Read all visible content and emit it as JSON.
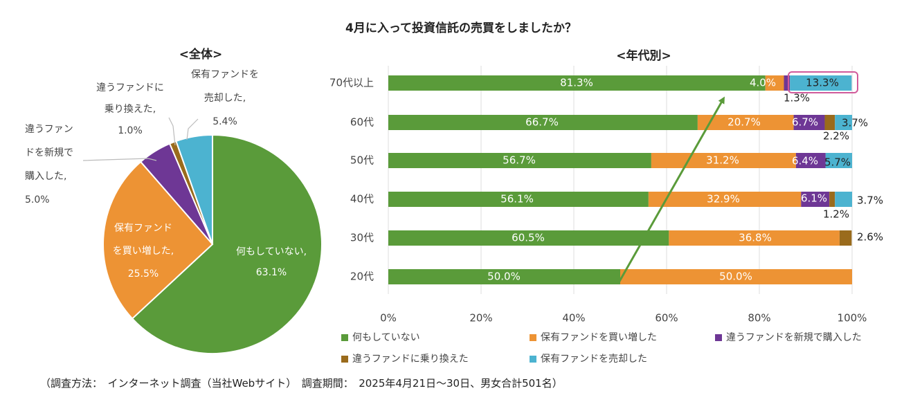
{
  "title": "4月に入って投資信託の売買をしましたか？",
  "footer": "（調査方法：　インターネット調査（当社Webサイト）　調査期間：　2025年4月21日～30日、男女合計501名）",
  "chart_data": [
    {
      "type": "pie",
      "title": "<全体>",
      "slices": [
        {
          "label": [
            "何もしていない,",
            "63.1%"
          ],
          "value": 63.1,
          "color": "#5a9b3a"
        },
        {
          "label": [
            "保有ファンド",
            "を買い増した,",
            "25.5%"
          ],
          "value": 25.5,
          "color": "#ed9334"
        },
        {
          "label": [
            "違うファン",
            "ドを新規で",
            "購入した,",
            "5.0%"
          ],
          "value": 5.0,
          "color": "#6e3795"
        },
        {
          "label": [
            "違うファンドに",
            "乗り換えた,",
            "1.0%"
          ],
          "value": 1.0,
          "color": "#9a6b1c"
        },
        {
          "label": [
            "保有ファンドを",
            "売却した,",
            "5.4%"
          ],
          "value": 5.4,
          "color": "#4cb3d0"
        }
      ]
    },
    {
      "type": "bar",
      "orientation": "horizontal",
      "stacked": "percent",
      "title": "<年代別>",
      "categories": [
        "70代以上",
        "60代",
        "50代",
        "40代",
        "30代",
        "20代"
      ],
      "xlim": [
        0,
        100
      ],
      "xticks": [
        "0%",
        "20%",
        "40%",
        "60%",
        "80%",
        "100%"
      ],
      "series": [
        {
          "name": "何もしていない",
          "color": "#5a9b3a",
          "values": [
            81.3,
            66.7,
            56.7,
            56.1,
            60.5,
            50.0
          ]
        },
        {
          "name": "保有ファンドを買い増した",
          "color": "#ed9334",
          "values": [
            4.0,
            20.7,
            31.2,
            32.9,
            36.8,
            50.0
          ]
        },
        {
          "name": "違うファンドを新規で購入した",
          "color": "#6e3795",
          "values": [
            1.3,
            6.7,
            6.4,
            6.1,
            0,
            0
          ]
        },
        {
          "name": "違うファンドに乗り換えた",
          "color": "#9a6b1c",
          "values": [
            0,
            2.2,
            0,
            1.2,
            2.6,
            0
          ]
        },
        {
          "name": "保有ファンドを売却した",
          "color": "#4cb3d0",
          "values": [
            13.3,
            3.7,
            5.7,
            3.7,
            0,
            0
          ]
        }
      ],
      "data_labels": [
        [
          "81.3%",
          "4.0%",
          "1.3%",
          "",
          "13.3%"
        ],
        [
          "66.7%",
          "20.7%",
          "6.7%",
          "2.2%",
          "3.7%"
        ],
        [
          "56.7%",
          "31.2%",
          "6.4%",
          "",
          "5.7%"
        ],
        [
          "56.1%",
          "32.9%",
          "6.1%",
          "1.2%",
          "3.7%"
        ],
        [
          "60.5%",
          "36.8%",
          "",
          "2.6%",
          ""
        ],
        [
          "50.0%",
          "50.0%",
          "",
          "",
          ""
        ]
      ],
      "highlight_category": "70代以上",
      "highlight_color": "#d05a9a",
      "trend_arrow_color": "#5a9b3a",
      "legend_position": "bottom"
    }
  ]
}
